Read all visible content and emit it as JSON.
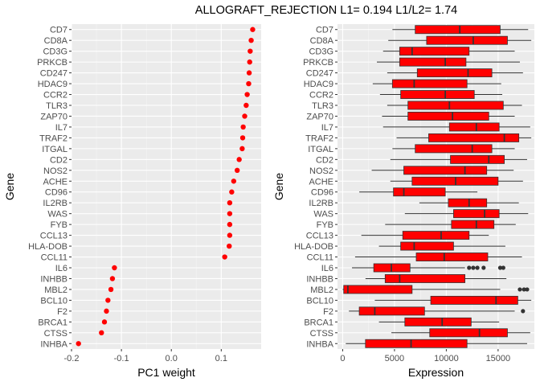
{
  "title": "ALLOGRAFT_REJECTION L1= 0.194 L1/L2= 1.74",
  "colors": {
    "panel_bg": "#ebebeb",
    "grid_major": "#ffffff",
    "point": "#ff0000",
    "box_fill": "#ff0000",
    "box_line": "#333333",
    "outlier": "#333333"
  },
  "chart_data": [
    {
      "type": "scatter",
      "xlabel": "PC1 weight",
      "ylabel": "Gene",
      "xlim": [
        -0.2,
        0.18
      ],
      "xticks": [
        -0.2,
        -0.1,
        0.0,
        0.1
      ],
      "xtick_labels": [
        "-0.2",
        "-0.1",
        "0.0",
        "0.1"
      ],
      "grid": true,
      "categories": [
        "CD7",
        "CD8A",
        "CD3G",
        "PRKCB",
        "CD247",
        "HDAC9",
        "CCR2",
        "TLR3",
        "ZAP70",
        "IL7",
        "TRAF2",
        "ITGAL",
        "CD2",
        "NOS2",
        "ACHE",
        "CD96",
        "IL2RB",
        "WAS",
        "FYB",
        "CCL13",
        "HLA-DOB",
        "CCL11",
        "IL6",
        "INHBB",
        "MBL2",
        "BCL10",
        "F2",
        "BRCA1",
        "CTSS",
        "INHBA"
      ],
      "values": [
        0.163,
        0.16,
        0.158,
        0.157,
        0.156,
        0.155,
        0.152,
        0.15,
        0.147,
        0.144,
        0.143,
        0.142,
        0.136,
        0.132,
        0.125,
        0.121,
        0.117,
        0.117,
        0.117,
        0.117,
        0.116,
        0.107,
        -0.114,
        -0.118,
        -0.121,
        -0.127,
        -0.13,
        -0.134,
        -0.14,
        -0.186
      ]
    },
    {
      "type": "boxplot",
      "xlabel": "Expression",
      "ylabel": "Gene",
      "xlim": [
        -500,
        18500
      ],
      "xticks": [
        0,
        5000,
        10000,
        15000
      ],
      "xtick_labels": [
        "0",
        "5000",
        "10000",
        "15000"
      ],
      "grid": true,
      "categories": [
        "CD7",
        "CD8A",
        "CD3G",
        "PRKCB",
        "CD247",
        "HDAC9",
        "CCR2",
        "TLR3",
        "ZAP70",
        "IL7",
        "TRAF2",
        "ITGAL",
        "CD2",
        "NOS2",
        "ACHE",
        "CD96",
        "IL2RB",
        "WAS",
        "FYB",
        "CCL13",
        "HLA-DOB",
        "CCL11",
        "IL6",
        "INHBB",
        "MBL2",
        "BCL10",
        "F2",
        "BRCA1",
        "CTSS",
        "INHBA"
      ],
      "boxes": [
        {
          "min": 4800,
          "q1": 7000,
          "median": 11300,
          "q3": 15200,
          "max": 17900,
          "outliers": []
        },
        {
          "min": 4400,
          "q1": 8100,
          "median": 12600,
          "q3": 15900,
          "max": 18200,
          "outliers": []
        },
        {
          "min": 3900,
          "q1": 5500,
          "median": 6700,
          "q3": 12200,
          "max": 16600,
          "outliers": []
        },
        {
          "min": 3300,
          "q1": 5500,
          "median": 9900,
          "q3": 11900,
          "max": 17100,
          "outliers": []
        },
        {
          "min": 4300,
          "q1": 7200,
          "median": 12100,
          "q3": 14400,
          "max": 17400,
          "outliers": []
        },
        {
          "min": 2900,
          "q1": 4800,
          "median": 6900,
          "q3": 12000,
          "max": 15300,
          "outliers": []
        },
        {
          "min": 3600,
          "q1": 5600,
          "median": 9900,
          "q3": 12700,
          "max": 15400,
          "outliers": []
        },
        {
          "min": 4300,
          "q1": 6300,
          "median": 10300,
          "q3": 15500,
          "max": 17300,
          "outliers": []
        },
        {
          "min": 3800,
          "q1": 6300,
          "median": 10600,
          "q3": 14100,
          "max": 16600,
          "outliers": []
        },
        {
          "min": 3900,
          "q1": 10300,
          "median": 12900,
          "q3": 15100,
          "max": 18100,
          "outliers": []
        },
        {
          "min": 5200,
          "q1": 8300,
          "median": 15600,
          "q3": 17000,
          "max": 18200,
          "outliers": []
        },
        {
          "min": 4800,
          "q1": 7000,
          "median": 12500,
          "q3": 14400,
          "max": 16600,
          "outliers": []
        },
        {
          "min": 4600,
          "q1": 10400,
          "median": 14100,
          "q3": 15600,
          "max": 17800,
          "outliers": []
        },
        {
          "min": 2800,
          "q1": 5900,
          "median": 11800,
          "q3": 13900,
          "max": 16500,
          "outliers": []
        },
        {
          "min": 4600,
          "q1": 6700,
          "median": 10900,
          "q3": 15000,
          "max": 17400,
          "outliers": []
        },
        {
          "min": 1600,
          "q1": 4900,
          "median": 5900,
          "q3": 9900,
          "max": 13000,
          "outliers": []
        },
        {
          "min": 7400,
          "q1": 10200,
          "median": 12200,
          "q3": 13900,
          "max": 17000,
          "outliers": []
        },
        {
          "min": 6000,
          "q1": 10700,
          "median": 13700,
          "q3": 15100,
          "max": 17900,
          "outliers": []
        },
        {
          "min": 4100,
          "q1": 10500,
          "median": 12900,
          "q3": 14600,
          "max": 16700,
          "outliers": []
        },
        {
          "min": 1800,
          "q1": 5800,
          "median": 9500,
          "q3": 12200,
          "max": 14100,
          "outliers": []
        },
        {
          "min": 3500,
          "q1": 5600,
          "median": 6900,
          "q3": 10700,
          "max": 15700,
          "outliers": []
        },
        {
          "min": 1200,
          "q1": 7100,
          "median": 9800,
          "q3": 14000,
          "max": 17300,
          "outliers": []
        },
        {
          "min": 900,
          "q1": 3000,
          "median": 4700,
          "q3": 6500,
          "max": 11800,
          "outliers": [
            12200,
            12600,
            13000,
            13600,
            15200,
            15500
          ]
        },
        {
          "min": 2200,
          "q1": 4100,
          "median": 5500,
          "q3": 11800,
          "max": 15800,
          "outliers": []
        },
        {
          "min": 0,
          "q1": 100,
          "median": 500,
          "q3": 6700,
          "max": 15200,
          "outliers": [
            17100,
            17500,
            17800
          ]
        },
        {
          "min": 3100,
          "q1": 8500,
          "median": 14800,
          "q3": 16900,
          "max": 18200,
          "outliers": []
        },
        {
          "min": 600,
          "q1": 1600,
          "median": 3100,
          "q3": 7900,
          "max": 16600,
          "outliers": [
            17400
          ]
        },
        {
          "min": 3500,
          "q1": 6000,
          "median": 9600,
          "q3": 12400,
          "max": 15100,
          "outliers": []
        },
        {
          "min": 4700,
          "q1": 8400,
          "median": 13200,
          "q3": 15900,
          "max": 18100,
          "outliers": []
        },
        {
          "min": 300,
          "q1": 2200,
          "median": 6600,
          "q3": 12000,
          "max": 17800,
          "outliers": []
        }
      ]
    }
  ]
}
